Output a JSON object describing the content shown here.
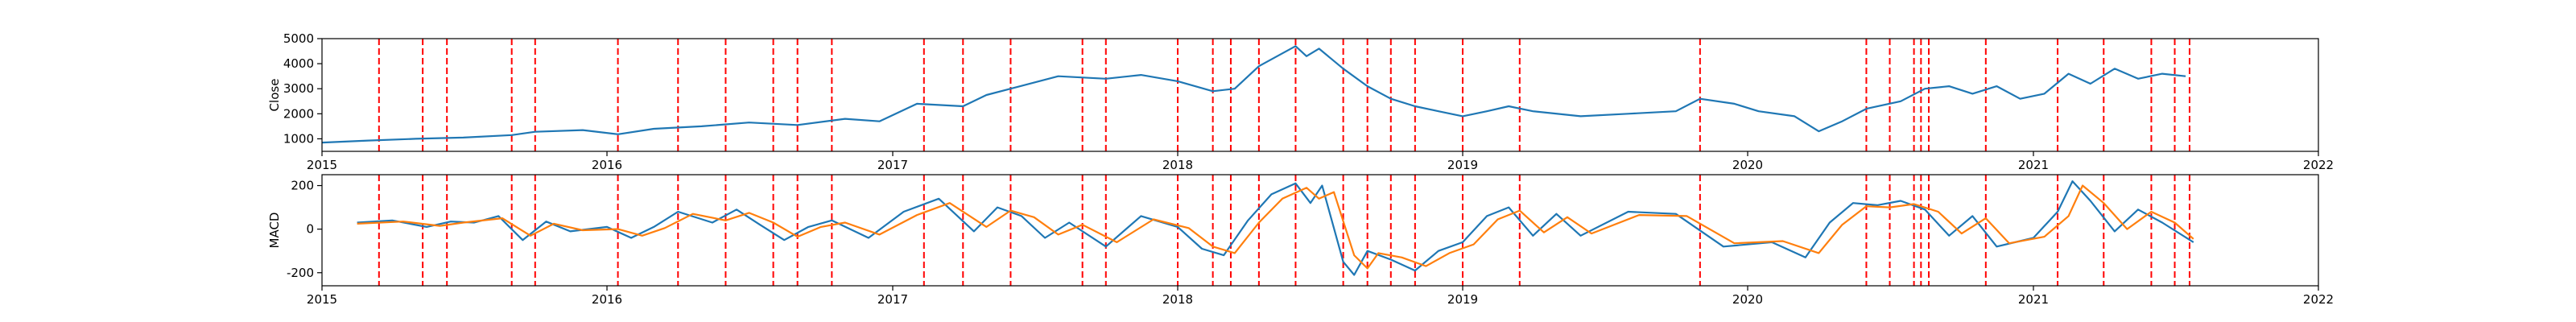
{
  "chart_data": [
    {
      "type": "line",
      "ylabel": "Close",
      "xlabel": "",
      "x_range": [
        "2015-01-01",
        "2022-01-01"
      ],
      "ylim": [
        500,
        5000
      ],
      "yticks": [
        1000,
        2000,
        3000,
        4000,
        5000
      ],
      "xticks": [
        "2015-01-01",
        "2016-01-01",
        "2017-01-01",
        "2018-01-01",
        "2019-01-01",
        "2020-01-01",
        "2021-01-01",
        "2022-01-01"
      ],
      "xtick_labels": [
        "2015",
        "2016",
        "2017",
        "2018",
        "2019",
        "2020",
        "2021",
        "2022"
      ],
      "series": [
        {
          "color": "#1f77b4",
          "points": [
            [
              "2015-01-01",
              850
            ],
            [
              "2015-03-01",
              930
            ],
            [
              "2015-05-01",
              1000
            ],
            [
              "2015-07-01",
              1050
            ],
            [
              "2015-09-01",
              1150
            ],
            [
              "2015-10-01",
              1280
            ],
            [
              "2015-12-01",
              1350
            ],
            [
              "2016-01-15",
              1180
            ],
            [
              "2016-03-01",
              1400
            ],
            [
              "2016-05-01",
              1500
            ],
            [
              "2016-07-01",
              1650
            ],
            [
              "2016-09-01",
              1550
            ],
            [
              "2016-11-01",
              1800
            ],
            [
              "2016-12-15",
              1700
            ],
            [
              "2017-02-01",
              2400
            ],
            [
              "2017-04-01",
              2300
            ],
            [
              "2017-05-01",
              2750
            ],
            [
              "2017-06-01",
              3000
            ],
            [
              "2017-08-01",
              3500
            ],
            [
              "2017-10-01",
              3400
            ],
            [
              "2017-11-15",
              3550
            ],
            [
              "2018-01-01",
              3300
            ],
            [
              "2018-02-15",
              2900
            ],
            [
              "2018-03-15",
              3000
            ],
            [
              "2018-04-15",
              3900
            ],
            [
              "2018-06-01",
              4700
            ],
            [
              "2018-06-15",
              4300
            ],
            [
              "2018-07-01",
              4600
            ],
            [
              "2018-08-01",
              3800
            ],
            [
              "2018-09-01",
              3100
            ],
            [
              "2018-10-01",
              2600
            ],
            [
              "2018-11-01",
              2300
            ],
            [
              "2018-12-01",
              2100
            ],
            [
              "2019-01-01",
              1900
            ],
            [
              "2019-02-01",
              2100
            ],
            [
              "2019-03-01",
              2300
            ],
            [
              "2019-04-01",
              2100
            ],
            [
              "2019-06-01",
              1900
            ],
            [
              "2019-08-01",
              2000
            ],
            [
              "2019-10-01",
              2100
            ],
            [
              "2019-11-01",
              2600
            ],
            [
              "2019-12-15",
              2400
            ],
            [
              "2020-01-15",
              2100
            ],
            [
              "2020-03-01",
              1900
            ],
            [
              "2020-04-01",
              1300
            ],
            [
              "2020-05-01",
              1700
            ],
            [
              "2020-06-01",
              2200
            ],
            [
              "2020-07-15",
              2500
            ],
            [
              "2020-08-15",
              3000
            ],
            [
              "2020-09-15",
              3100
            ],
            [
              "2020-10-15",
              2800
            ],
            [
              "2020-11-15",
              3100
            ],
            [
              "2020-12-15",
              2600
            ],
            [
              "2021-01-15",
              2800
            ],
            [
              "2021-02-15",
              3600
            ],
            [
              "2021-03-15",
              3200
            ],
            [
              "2021-04-15",
              3800
            ],
            [
              "2021-05-15",
              3400
            ],
            [
              "2021-06-15",
              3600
            ],
            [
              "2021-07-15",
              3500
            ]
          ]
        }
      ],
      "vlines": {
        "color": "#ff0000",
        "style": "dashed",
        "dates": [
          "2015-03-15",
          "2015-05-10",
          "2015-06-10",
          "2015-09-01",
          "2015-10-01",
          "2016-01-15",
          "2016-04-01",
          "2016-06-01",
          "2016-08-01",
          "2016-09-01",
          "2016-10-15",
          "2017-02-10",
          "2017-04-01",
          "2017-06-01",
          "2017-09-01",
          "2017-10-01",
          "2018-01-01",
          "2018-02-15",
          "2018-03-10",
          "2018-04-15",
          "2018-06-01",
          "2018-08-01",
          "2018-09-01",
          "2018-10-01",
          "2018-11-01",
          "2019-01-01",
          "2019-03-15",
          "2019-11-01",
          "2020-06-01",
          "2020-07-01",
          "2020-08-01",
          "2020-08-10",
          "2020-08-20",
          "2020-11-01",
          "2021-02-01",
          "2021-04-01",
          "2021-06-01",
          "2021-07-01",
          "2021-07-20"
        ]
      }
    },
    {
      "type": "line",
      "ylabel": "MACD",
      "xlabel": "",
      "x_range": [
        "2015-01-01",
        "2022-01-01"
      ],
      "ylim": [
        -260,
        250
      ],
      "yticks": [
        -200,
        0,
        200
      ],
      "xticks": [
        "2015-01-01",
        "2016-01-01",
        "2017-01-01",
        "2018-01-01",
        "2019-01-01",
        "2020-01-01",
        "2021-01-01",
        "2022-01-01"
      ],
      "xtick_labels": [
        "2015",
        "2016",
        "2017",
        "2018",
        "2019",
        "2020",
        "2021",
        "2022"
      ],
      "series": [
        {
          "color": "#1f77b4",
          "points": [
            [
              "2015-02-15",
              30
            ],
            [
              "2015-04-01",
              40
            ],
            [
              "2015-05-15",
              10
            ],
            [
              "2015-06-15",
              35
            ],
            [
              "2015-07-15",
              30
            ],
            [
              "2015-08-15",
              60
            ],
            [
              "2015-09-15",
              -50
            ],
            [
              "2015-10-15",
              35
            ],
            [
              "2015-11-15",
              -10
            ],
            [
              "2016-01-01",
              10
            ],
            [
              "2016-02-01",
              -40
            ],
            [
              "2016-03-01",
              10
            ],
            [
              "2016-04-01",
              80
            ],
            [
              "2016-05-15",
              30
            ],
            [
              "2016-06-15",
              90
            ],
            [
              "2016-07-15",
              20
            ],
            [
              "2016-08-15",
              -50
            ],
            [
              "2016-09-15",
              10
            ],
            [
              "2016-10-15",
              40
            ],
            [
              "2016-12-01",
              -40
            ],
            [
              "2017-01-15",
              80
            ],
            [
              "2017-03-01",
              140
            ],
            [
              "2017-04-15",
              -10
            ],
            [
              "2017-05-15",
              100
            ],
            [
              "2017-06-15",
              60
            ],
            [
              "2017-07-15",
              -40
            ],
            [
              "2017-08-15",
              30
            ],
            [
              "2017-10-01",
              -80
            ],
            [
              "2017-11-15",
              60
            ],
            [
              "2018-01-01",
              10
            ],
            [
              "2018-02-01",
              -90
            ],
            [
              "2018-03-01",
              -120
            ],
            [
              "2018-04-01",
              40
            ],
            [
              "2018-05-01",
              160
            ],
            [
              "2018-06-01",
              210
            ],
            [
              "2018-06-20",
              120
            ],
            [
              "2018-07-05",
              200
            ],
            [
              "2018-08-01",
              -150
            ],
            [
              "2018-08-15",
              -210
            ],
            [
              "2018-09-01",
              -100
            ],
            [
              "2018-10-01",
              -140
            ],
            [
              "2018-11-01",
              -190
            ],
            [
              "2018-12-01",
              -100
            ],
            [
              "2019-01-01",
              -60
            ],
            [
              "2019-02-01",
              60
            ],
            [
              "2019-03-01",
              100
            ],
            [
              "2019-04-01",
              -30
            ],
            [
              "2019-05-01",
              70
            ],
            [
              "2019-06-01",
              -30
            ],
            [
              "2019-08-01",
              80
            ],
            [
              "2019-10-01",
              70
            ],
            [
              "2019-12-01",
              -80
            ],
            [
              "2020-02-01",
              -60
            ],
            [
              "2020-03-15",
              -130
            ],
            [
              "2020-04-15",
              30
            ],
            [
              "2020-05-15",
              120
            ],
            [
              "2020-06-15",
              110
            ],
            [
              "2020-07-15",
              130
            ],
            [
              "2020-08-15",
              90
            ],
            [
              "2020-09-15",
              -30
            ],
            [
              "2020-10-15",
              60
            ],
            [
              "2020-11-15",
              -80
            ],
            [
              "2021-01-01",
              -40
            ],
            [
              "2021-02-01",
              80
            ],
            [
              "2021-02-20",
              220
            ],
            [
              "2021-03-15",
              130
            ],
            [
              "2021-04-15",
              -10
            ],
            [
              "2021-05-15",
              90
            ],
            [
              "2021-06-15",
              30
            ],
            [
              "2021-07-25",
              -60
            ]
          ]
        },
        {
          "color": "#ff7f0e",
          "points": [
            [
              "2015-02-15",
              25
            ],
            [
              "2015-04-15",
              35
            ],
            [
              "2015-06-01",
              15
            ],
            [
              "2015-07-01",
              30
            ],
            [
              "2015-08-20",
              50
            ],
            [
              "2015-09-25",
              -30
            ],
            [
              "2015-10-25",
              25
            ],
            [
              "2015-12-01",
              -5
            ],
            [
              "2016-01-15",
              0
            ],
            [
              "2016-02-15",
              -30
            ],
            [
              "2016-03-15",
              5
            ],
            [
              "2016-04-20",
              70
            ],
            [
              "2016-06-01",
              40
            ],
            [
              "2016-07-01",
              75
            ],
            [
              "2016-08-01",
              30
            ],
            [
              "2016-09-01",
              -35
            ],
            [
              "2016-10-01",
              10
            ],
            [
              "2016-11-01",
              30
            ],
            [
              "2016-12-15",
              -25
            ],
            [
              "2017-02-01",
              65
            ],
            [
              "2017-03-15",
              120
            ],
            [
              "2017-05-01",
              10
            ],
            [
              "2017-06-01",
              85
            ],
            [
              "2017-07-01",
              55
            ],
            [
              "2017-08-01",
              -25
            ],
            [
              "2017-09-01",
              20
            ],
            [
              "2017-10-15",
              -60
            ],
            [
              "2017-12-01",
              45
            ],
            [
              "2018-01-15",
              5
            ],
            [
              "2018-02-15",
              -80
            ],
            [
              "2018-03-15",
              -110
            ],
            [
              "2018-04-15",
              30
            ],
            [
              "2018-05-15",
              140
            ],
            [
              "2018-06-15",
              190
            ],
            [
              "2018-07-01",
              140
            ],
            [
              "2018-07-20",
              170
            ],
            [
              "2018-08-15",
              -120
            ],
            [
              "2018-09-01",
              -180
            ],
            [
              "2018-09-15",
              -110
            ],
            [
              "2018-10-15",
              -130
            ],
            [
              "2018-11-15",
              -170
            ],
            [
              "2018-12-15",
              -110
            ],
            [
              "2019-01-15",
              -70
            ],
            [
              "2019-02-15",
              45
            ],
            [
              "2019-03-15",
              85
            ],
            [
              "2019-04-15",
              -15
            ],
            [
              "2019-05-15",
              55
            ],
            [
              "2019-06-15",
              -20
            ],
            [
              "2019-08-15",
              65
            ],
            [
              "2019-10-15",
              60
            ],
            [
              "2019-12-15",
              -65
            ],
            [
              "2020-02-15",
              -55
            ],
            [
              "2020-04-01",
              -110
            ],
            [
              "2020-05-01",
              20
            ],
            [
              "2020-06-01",
              105
            ],
            [
              "2020-07-01",
              100
            ],
            [
              "2020-08-01",
              115
            ],
            [
              "2020-09-01",
              80
            ],
            [
              "2020-10-01",
              -20
            ],
            [
              "2020-11-01",
              50
            ],
            [
              "2020-12-01",
              -65
            ],
            [
              "2021-01-15",
              -35
            ],
            [
              "2021-02-15",
              60
            ],
            [
              "2021-03-05",
              200
            ],
            [
              "2021-04-01",
              120
            ],
            [
              "2021-05-01",
              0
            ],
            [
              "2021-06-01",
              80
            ],
            [
              "2021-07-01",
              30
            ],
            [
              "2021-07-25",
              -45
            ]
          ]
        }
      ],
      "vlines": {
        "color": "#ff0000",
        "style": "dashed",
        "dates": [
          "2015-03-15",
          "2015-05-10",
          "2015-06-10",
          "2015-09-01",
          "2015-10-01",
          "2016-01-15",
          "2016-04-01",
          "2016-06-01",
          "2016-08-01",
          "2016-09-01",
          "2016-10-15",
          "2017-02-10",
          "2017-04-01",
          "2017-06-01",
          "2017-09-01",
          "2017-10-01",
          "2018-01-01",
          "2018-02-15",
          "2018-03-10",
          "2018-04-15",
          "2018-06-01",
          "2018-08-01",
          "2018-09-01",
          "2018-10-01",
          "2018-11-01",
          "2019-01-01",
          "2019-03-15",
          "2019-11-01",
          "2020-06-01",
          "2020-07-01",
          "2020-08-01",
          "2020-08-10",
          "2020-08-20",
          "2020-11-01",
          "2021-02-01",
          "2021-04-01",
          "2021-06-01",
          "2021-07-01",
          "2021-07-20"
        ]
      }
    }
  ]
}
